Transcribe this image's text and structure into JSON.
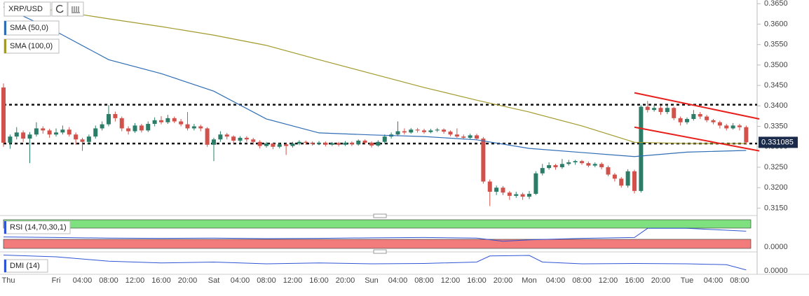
{
  "chart_data": {
    "type": "candlestick",
    "symbol": "XRP/USD",
    "categories": [
      "Thu",
      null,
      null,
      null,
      null,
      null,
      null,
      null,
      "Fri",
      null,
      null,
      null,
      "04:00",
      null,
      null,
      null,
      "08:00",
      null,
      null,
      null,
      "12:00",
      null,
      null,
      null,
      "16:00",
      null,
      null,
      null,
      "20:00",
      null,
      null,
      null,
      "Sat",
      null,
      null,
      null,
      "04:00",
      null,
      null,
      null,
      "08:00",
      null,
      null,
      null,
      "12:00",
      null,
      null,
      null,
      "16:00",
      null,
      null,
      null,
      "20:00",
      null,
      null,
      null,
      "Sun",
      null,
      null,
      null,
      "04:00",
      null,
      null,
      null,
      "08:00",
      null,
      null,
      null,
      "12:00",
      null,
      null,
      null,
      "16:00",
      null,
      null,
      null,
      "20:00",
      null,
      null,
      null,
      "Mon",
      null,
      null,
      null,
      "04:00",
      null,
      null,
      null,
      "08:00",
      null,
      null,
      null,
      "12:00",
      null,
      null,
      null,
      "16:00",
      null,
      null,
      null,
      "20:00",
      null,
      null,
      null,
      "Tue",
      null,
      null,
      null,
      "04:00",
      null,
      null,
      null,
      "08:00",
      null
    ],
    "ohlc": [
      [
        0.3445,
        0.3455,
        0.33,
        0.331
      ],
      [
        0.331,
        0.333,
        0.3295,
        0.3325
      ],
      [
        0.3325,
        0.3348,
        0.3318,
        0.3335
      ],
      [
        0.3335,
        0.334,
        0.3312,
        0.332
      ],
      [
        0.332,
        0.3336,
        0.326,
        0.333
      ],
      [
        0.333,
        0.336,
        0.3325,
        0.3345
      ],
      [
        0.3345,
        0.335,
        0.3332,
        0.334
      ],
      [
        0.334,
        0.3344,
        0.3322,
        0.333
      ],
      [
        0.333,
        0.3345,
        0.3325,
        0.3335
      ],
      [
        0.3335,
        0.3352,
        0.333,
        0.3342
      ],
      [
        0.3342,
        0.3348,
        0.3325,
        0.333
      ],
      [
        0.333,
        0.3335,
        0.3305,
        0.3318
      ],
      [
        0.3318,
        0.3322,
        0.329,
        0.3312
      ],
      [
        0.3312,
        0.333,
        0.3306,
        0.3325
      ],
      [
        0.3325,
        0.3352,
        0.332,
        0.3345
      ],
      [
        0.3345,
        0.3362,
        0.334,
        0.3355
      ],
      [
        0.3355,
        0.3402,
        0.335,
        0.338
      ],
      [
        0.338,
        0.3386,
        0.3362,
        0.337
      ],
      [
        0.337,
        0.3374,
        0.3338,
        0.3345
      ],
      [
        0.3345,
        0.335,
        0.333,
        0.3338
      ],
      [
        0.3338,
        0.3358,
        0.3334,
        0.3352
      ],
      [
        0.3352,
        0.3356,
        0.3335,
        0.334
      ],
      [
        0.334,
        0.3362,
        0.3336,
        0.3356
      ],
      [
        0.3356,
        0.3372,
        0.335,
        0.3365
      ],
      [
        0.3365,
        0.3375,
        0.3355,
        0.336
      ],
      [
        0.336,
        0.3378,
        0.3356,
        0.337
      ],
      [
        0.337,
        0.3374,
        0.3358,
        0.3362
      ],
      [
        0.3362,
        0.3368,
        0.335,
        0.3355
      ],
      [
        0.3355,
        0.3385,
        0.334,
        0.3345
      ],
      [
        0.3345,
        0.3356,
        0.334,
        0.335
      ],
      [
        0.335,
        0.3354,
        0.3338,
        0.3345
      ],
      [
        0.3345,
        0.3348,
        0.33,
        0.3305
      ],
      [
        0.3305,
        0.3322,
        0.3265,
        0.3318
      ],
      [
        0.3318,
        0.3338,
        0.3312,
        0.333
      ],
      [
        0.333,
        0.3334,
        0.3318,
        0.3325
      ],
      [
        0.3325,
        0.3328,
        0.3308,
        0.3315
      ],
      [
        0.3315,
        0.3326,
        0.331,
        0.3322
      ],
      [
        0.3322,
        0.3326,
        0.3312,
        0.3318
      ],
      [
        0.3318,
        0.3322,
        0.3305,
        0.3312
      ],
      [
        0.3312,
        0.3316,
        0.3296,
        0.3302
      ],
      [
        0.3302,
        0.3312,
        0.3298,
        0.3308
      ],
      [
        0.3308,
        0.331,
        0.3294,
        0.33
      ],
      [
        0.33,
        0.331,
        0.3296,
        0.3306
      ],
      [
        0.3306,
        0.3309,
        0.328,
        0.3302
      ],
      [
        0.3302,
        0.3312,
        0.3298,
        0.3308
      ],
      [
        0.3308,
        0.3316,
        0.3304,
        0.3312
      ],
      [
        0.3312,
        0.3315,
        0.3305,
        0.331
      ],
      [
        0.331,
        0.3313,
        0.3303,
        0.3307
      ],
      [
        0.3307,
        0.3314,
        0.3304,
        0.331
      ],
      [
        0.331,
        0.3313,
        0.3301,
        0.3305
      ],
      [
        0.3305,
        0.3312,
        0.3302,
        0.3309
      ],
      [
        0.3309,
        0.3312,
        0.3301,
        0.3305
      ],
      [
        0.3305,
        0.3314,
        0.3302,
        0.331
      ],
      [
        0.331,
        0.3313,
        0.3302,
        0.3306
      ],
      [
        0.3306,
        0.3318,
        0.3303,
        0.3315
      ],
      [
        0.3315,
        0.3318,
        0.3306,
        0.331
      ],
      [
        0.331,
        0.3313,
        0.3298,
        0.3303
      ],
      [
        0.3303,
        0.3316,
        0.33,
        0.3312
      ],
      [
        0.3312,
        0.333,
        0.3308,
        0.3325
      ],
      [
        0.3325,
        0.3335,
        0.332,
        0.333
      ],
      [
        0.333,
        0.3362,
        0.3326,
        0.3338
      ],
      [
        0.3338,
        0.3345,
        0.333,
        0.3335
      ],
      [
        0.3335,
        0.3346,
        0.3332,
        0.3342
      ],
      [
        0.3342,
        0.3346,
        0.3335,
        0.334
      ],
      [
        0.334,
        0.3344,
        0.3332,
        0.3336
      ],
      [
        0.3336,
        0.3344,
        0.3333,
        0.334
      ],
      [
        0.334,
        0.3346,
        0.3336,
        0.3342
      ],
      [
        0.3342,
        0.3345,
        0.3332,
        0.3337
      ],
      [
        0.3337,
        0.334,
        0.3326,
        0.333
      ],
      [
        0.333,
        0.3345,
        0.3322,
        0.3325
      ],
      [
        0.3325,
        0.333,
        0.3318,
        0.3322
      ],
      [
        0.3322,
        0.3332,
        0.3318,
        0.3328
      ],
      [
        0.3328,
        0.3332,
        0.3316,
        0.332
      ],
      [
        0.332,
        0.3324,
        0.321,
        0.3215
      ],
      [
        0.3215,
        0.322,
        0.3155,
        0.319
      ],
      [
        0.319,
        0.3205,
        0.3182,
        0.32
      ],
      [
        0.32,
        0.3204,
        0.3182,
        0.3188
      ],
      [
        0.3188,
        0.3192,
        0.317,
        0.318
      ],
      [
        0.318,
        0.319,
        0.3175,
        0.3184
      ],
      [
        0.3184,
        0.3188,
        0.317,
        0.3178
      ],
      [
        0.3178,
        0.3192,
        0.3172,
        0.3185
      ],
      [
        0.3185,
        0.324,
        0.3182,
        0.3235
      ],
      [
        0.3235,
        0.3258,
        0.323,
        0.3248
      ],
      [
        0.3248,
        0.3262,
        0.3244,
        0.3255
      ],
      [
        0.3255,
        0.3258,
        0.3244,
        0.325
      ],
      [
        0.325,
        0.327,
        0.3246,
        0.3258
      ],
      [
        0.3258,
        0.3268,
        0.3254,
        0.3262
      ],
      [
        0.3262,
        0.3268,
        0.3256,
        0.3265
      ],
      [
        0.3265,
        0.3268,
        0.3256,
        0.326
      ],
      [
        0.326,
        0.3264,
        0.325,
        0.3254
      ],
      [
        0.3254,
        0.3262,
        0.325,
        0.3258
      ],
      [
        0.3258,
        0.3262,
        0.3245,
        0.325
      ],
      [
        0.325,
        0.3254,
        0.3228,
        0.3232
      ],
      [
        0.3232,
        0.3236,
        0.3215,
        0.3222
      ],
      [
        0.3222,
        0.3226,
        0.32,
        0.3205
      ],
      [
        0.3205,
        0.3245,
        0.32,
        0.324
      ],
      [
        0.324,
        0.3244,
        0.3186,
        0.3192
      ],
      [
        0.3192,
        0.3402,
        0.3188,
        0.3398
      ],
      [
        0.3398,
        0.3412,
        0.3384,
        0.339
      ],
      [
        0.339,
        0.3402,
        0.3386,
        0.3395
      ],
      [
        0.3395,
        0.34,
        0.3378,
        0.3385
      ],
      [
        0.3385,
        0.3402,
        0.338,
        0.3395
      ],
      [
        0.3395,
        0.3398,
        0.3365,
        0.337
      ],
      [
        0.337,
        0.3374,
        0.3352,
        0.336
      ],
      [
        0.336,
        0.3372,
        0.3355,
        0.3368
      ],
      [
        0.3368,
        0.339,
        0.3364,
        0.338
      ],
      [
        0.338,
        0.3385,
        0.3368,
        0.3374
      ],
      [
        0.3374,
        0.3378,
        0.336,
        0.3365
      ],
      [
        0.3365,
        0.3368,
        0.3355,
        0.336
      ],
      [
        0.336,
        0.3364,
        0.3345,
        0.3352
      ],
      [
        0.3352,
        0.3356,
        0.334,
        0.3345
      ],
      [
        0.3345,
        0.3358,
        0.3342,
        0.3352
      ],
      [
        0.3352,
        0.3356,
        0.334,
        0.3348
      ],
      [
        0.3348,
        0.3352,
        0.3305,
        0.3311
      ]
    ],
    "up_color": "#2b7d68",
    "down_color": "#d2524b",
    "ylim": [
      0.3137,
      0.3659
    ],
    "yticks": [
      {
        "value": 0.315,
        "label": "0.3150"
      },
      {
        "value": 0.32,
        "label": "0.3200"
      },
      {
        "value": 0.325,
        "label": "0.3250"
      },
      {
        "value": 0.33,
        "label": "0.3300"
      },
      {
        "value": 0.335,
        "label": "0.3350"
      },
      {
        "value": 0.34,
        "label": "0.3400"
      },
      {
        "value": 0.345,
        "label": "0.3450"
      },
      {
        "value": 0.35,
        "label": "0.3500"
      },
      {
        "value": 0.355,
        "label": "0.3550"
      },
      {
        "value": 0.36,
        "label": "0.3600"
      },
      {
        "value": 0.365,
        "label": "0.3650"
      }
    ],
    "grid": false,
    "current_price": 0.331085,
    "current_price_color": "#1a2a4a",
    "levels": [
      0.3403,
      0.3308
    ],
    "series": [
      {
        "name": "SMA (50,0)",
        "color": "#2f6db5",
        "x": [
          0,
          8,
          16,
          24,
          32,
          40,
          48,
          56,
          64,
          72,
          80,
          88,
          96,
          104,
          113
        ],
        "values": [
          0.3642,
          0.3582,
          0.3513,
          0.3479,
          0.3436,
          0.3368,
          0.3334,
          0.3329,
          0.3325,
          0.3317,
          0.3296,
          0.3286,
          0.3276,
          0.3287,
          0.3291
        ]
      },
      {
        "name": "SMA (100,0)",
        "color": "#a39a2c",
        "x": [
          0,
          8,
          16,
          24,
          32,
          40,
          48,
          56,
          64,
          72,
          80,
          88,
          96,
          104,
          113
        ],
        "values": [
          0.365,
          0.3633,
          0.3613,
          0.3594,
          0.3573,
          0.3548,
          0.3513,
          0.3479,
          0.3445,
          0.3414,
          0.3385,
          0.3351,
          0.3311,
          0.3308,
          0.3308
        ]
      }
    ],
    "trendlines": [
      {
        "color": "#e8201c",
        "x": [
          96,
          115
        ],
        "values": [
          0.3432,
          0.3368
        ]
      },
      {
        "color": "#e8201c",
        "x": [
          96,
          115
        ],
        "values": [
          0.3348,
          0.329
        ]
      }
    ],
    "rsi": {
      "label": "RSI (14,70,30,1)",
      "color": "#2f55d4",
      "ylim": [
        0,
        100
      ],
      "yticks": [
        {
          "value": 0,
          "label": "0.0000"
        }
      ],
      "x": [
        0,
        8,
        16,
        24,
        32,
        40,
        48,
        56,
        64,
        72,
        76,
        80,
        88,
        96,
        98,
        104,
        113
      ],
      "values": [
        40,
        38,
        36,
        35,
        36,
        34,
        35,
        37,
        38,
        36,
        25,
        30,
        35,
        38,
        70,
        70,
        60
      ]
    },
    "dmi": {
      "label": "DMI (14)",
      "color": "#2f55d4",
      "ylim": [
        -20,
        100
      ],
      "yticks": [
        {
          "value": 0,
          "label": "0.0000"
        }
      ],
      "x": [
        0,
        8,
        16,
        24,
        32,
        40,
        48,
        56,
        64,
        72,
        74,
        80,
        82,
        88,
        96,
        104,
        110,
        113
      ],
      "values": [
        90,
        80,
        55,
        45,
        50,
        40,
        45,
        40,
        42,
        50,
        85,
        88,
        50,
        40,
        42,
        40,
        35,
        5
      ]
    }
  }
}
